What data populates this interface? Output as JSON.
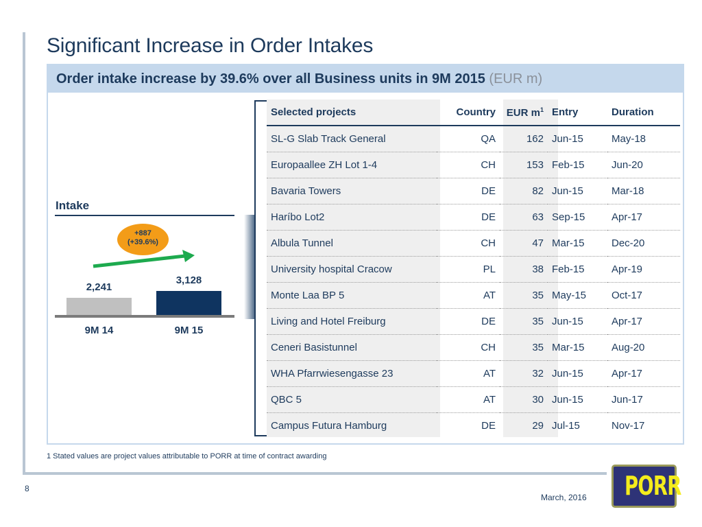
{
  "slide": {
    "title": "Significant Increase in Order Intakes",
    "subtitle_main": "Order intake increase by 39.6% over all Business units in 9M 2015",
    "subtitle_unit": "(EUR m)",
    "footnote": "1 Stated values are project values attributable to PORR at time of contract awarding",
    "page_number": "8",
    "date": "March, 2016",
    "logo_text": "PORR",
    "colors": {
      "primary": "#1d3a5c",
      "header_band": "#c5d8ec",
      "badge": "#f39c18",
      "arrow": "#1daa4e",
      "bar_prev": "#c0c0c0",
      "bar_curr": "#0f3460"
    }
  },
  "chart_data": {
    "type": "bar",
    "title": "Intake",
    "categories": [
      "9M 14",
      "9M 15"
    ],
    "values": [
      2241,
      3128
    ],
    "value_labels": [
      "2,241",
      "3,128"
    ],
    "annotation": {
      "line1": "+887",
      "line2": "(+39.6%)"
    },
    "xlabel": "",
    "ylabel": "",
    "grid": false
  },
  "table": {
    "headers": {
      "name": "Selected projects",
      "country": "Country",
      "eur": "EUR m",
      "eur_sup": "1",
      "entry": "Entry",
      "duration": "Duration"
    },
    "rows": [
      {
        "name": "SL-G Slab Track General",
        "country": "QA",
        "eur": "162",
        "entry": "Jun-15",
        "duration": "May-18"
      },
      {
        "name": "Europaallee ZH Lot 1-4",
        "country": "CH",
        "eur": "153",
        "entry": "Feb-15",
        "duration": "Jun-20"
      },
      {
        "name": "Bavaria Towers",
        "country": "DE",
        "eur": "82",
        "entry": "Jun-15",
        "duration": "Mar-18"
      },
      {
        "name": "Haríbo Lot2",
        "country": "DE",
        "eur": "63",
        "entry": "Sep-15",
        "duration": "Apr-17"
      },
      {
        "name": "Albula Tunnel",
        "country": "CH",
        "eur": "47",
        "entry": "Mar-15",
        "duration": "Dec-20"
      },
      {
        "name": "University hospital Cracow",
        "country": "PL",
        "eur": "38",
        "entry": "Feb-15",
        "duration": "Apr-19"
      },
      {
        "name": "Monte Laa BP 5",
        "country": "AT",
        "eur": "35",
        "entry": "May-15",
        "duration": "Oct-17"
      },
      {
        "name": "Living and Hotel Freiburg",
        "country": "DE",
        "eur": "35",
        "entry": "Jun-15",
        "duration": "Apr-17"
      },
      {
        "name": "Ceneri Basistunnel",
        "country": "CH",
        "eur": "35",
        "entry": "Mar-15",
        "duration": "Aug-20"
      },
      {
        "name": "WHA Pfarrwiesengasse 23",
        "country": "AT",
        "eur": "32",
        "entry": "Jun-15",
        "duration": "Apr-17"
      },
      {
        "name": "QBC 5",
        "country": "AT",
        "eur": "30",
        "entry": "Jun-15",
        "duration": "Jun-17"
      },
      {
        "name": "Campus Futura Hamburg",
        "country": "DE",
        "eur": "29",
        "entry": "Jul-15",
        "duration": "Nov-17"
      }
    ]
  }
}
